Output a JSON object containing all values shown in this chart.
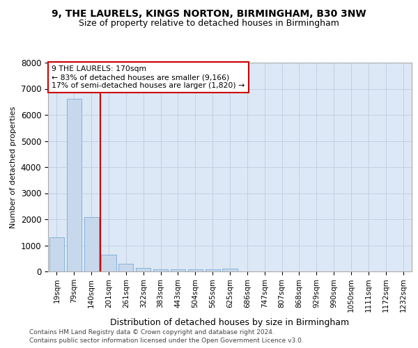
{
  "title1": "9, THE LAURELS, KINGS NORTON, BIRMINGHAM, B30 3NW",
  "title2": "Size of property relative to detached houses in Birmingham",
  "xlabel": "Distribution of detached houses by size in Birmingham",
  "ylabel": "Number of detached properties",
  "categories": [
    "19sqm",
    "79sqm",
    "140sqm",
    "201sqm",
    "261sqm",
    "322sqm",
    "383sqm",
    "443sqm",
    "504sqm",
    "565sqm",
    "625sqm",
    "686sqm",
    "747sqm",
    "807sqm",
    "868sqm",
    "929sqm",
    "990sqm",
    "1050sqm",
    "1111sqm",
    "1172sqm",
    "1232sqm"
  ],
  "values": [
    1310,
    6620,
    2080,
    650,
    290,
    140,
    90,
    80,
    70,
    80,
    100,
    0,
    0,
    0,
    0,
    0,
    0,
    0,
    0,
    0,
    0
  ],
  "bar_color": "#c8d8ec",
  "bar_edge_color": "#7baad4",
  "grid_color": "#c0cce0",
  "bg_color": "#dce8f5",
  "vline_color": "#cc0000",
  "annotation_text": "9 THE LAURELS: 170sqm\n← 83% of detached houses are smaller (9,166)\n17% of semi-detached houses are larger (1,820) →",
  "annotation_box_color": "#ffffff",
  "annotation_box_edge": "#cc0000",
  "footer1": "Contains HM Land Registry data © Crown copyright and database right 2024.",
  "footer2": "Contains public sector information licensed under the Open Government Licence v3.0.",
  "ylim": [
    0,
    8000
  ],
  "yticks": [
    0,
    1000,
    2000,
    3000,
    4000,
    5000,
    6000,
    7000,
    8000
  ]
}
